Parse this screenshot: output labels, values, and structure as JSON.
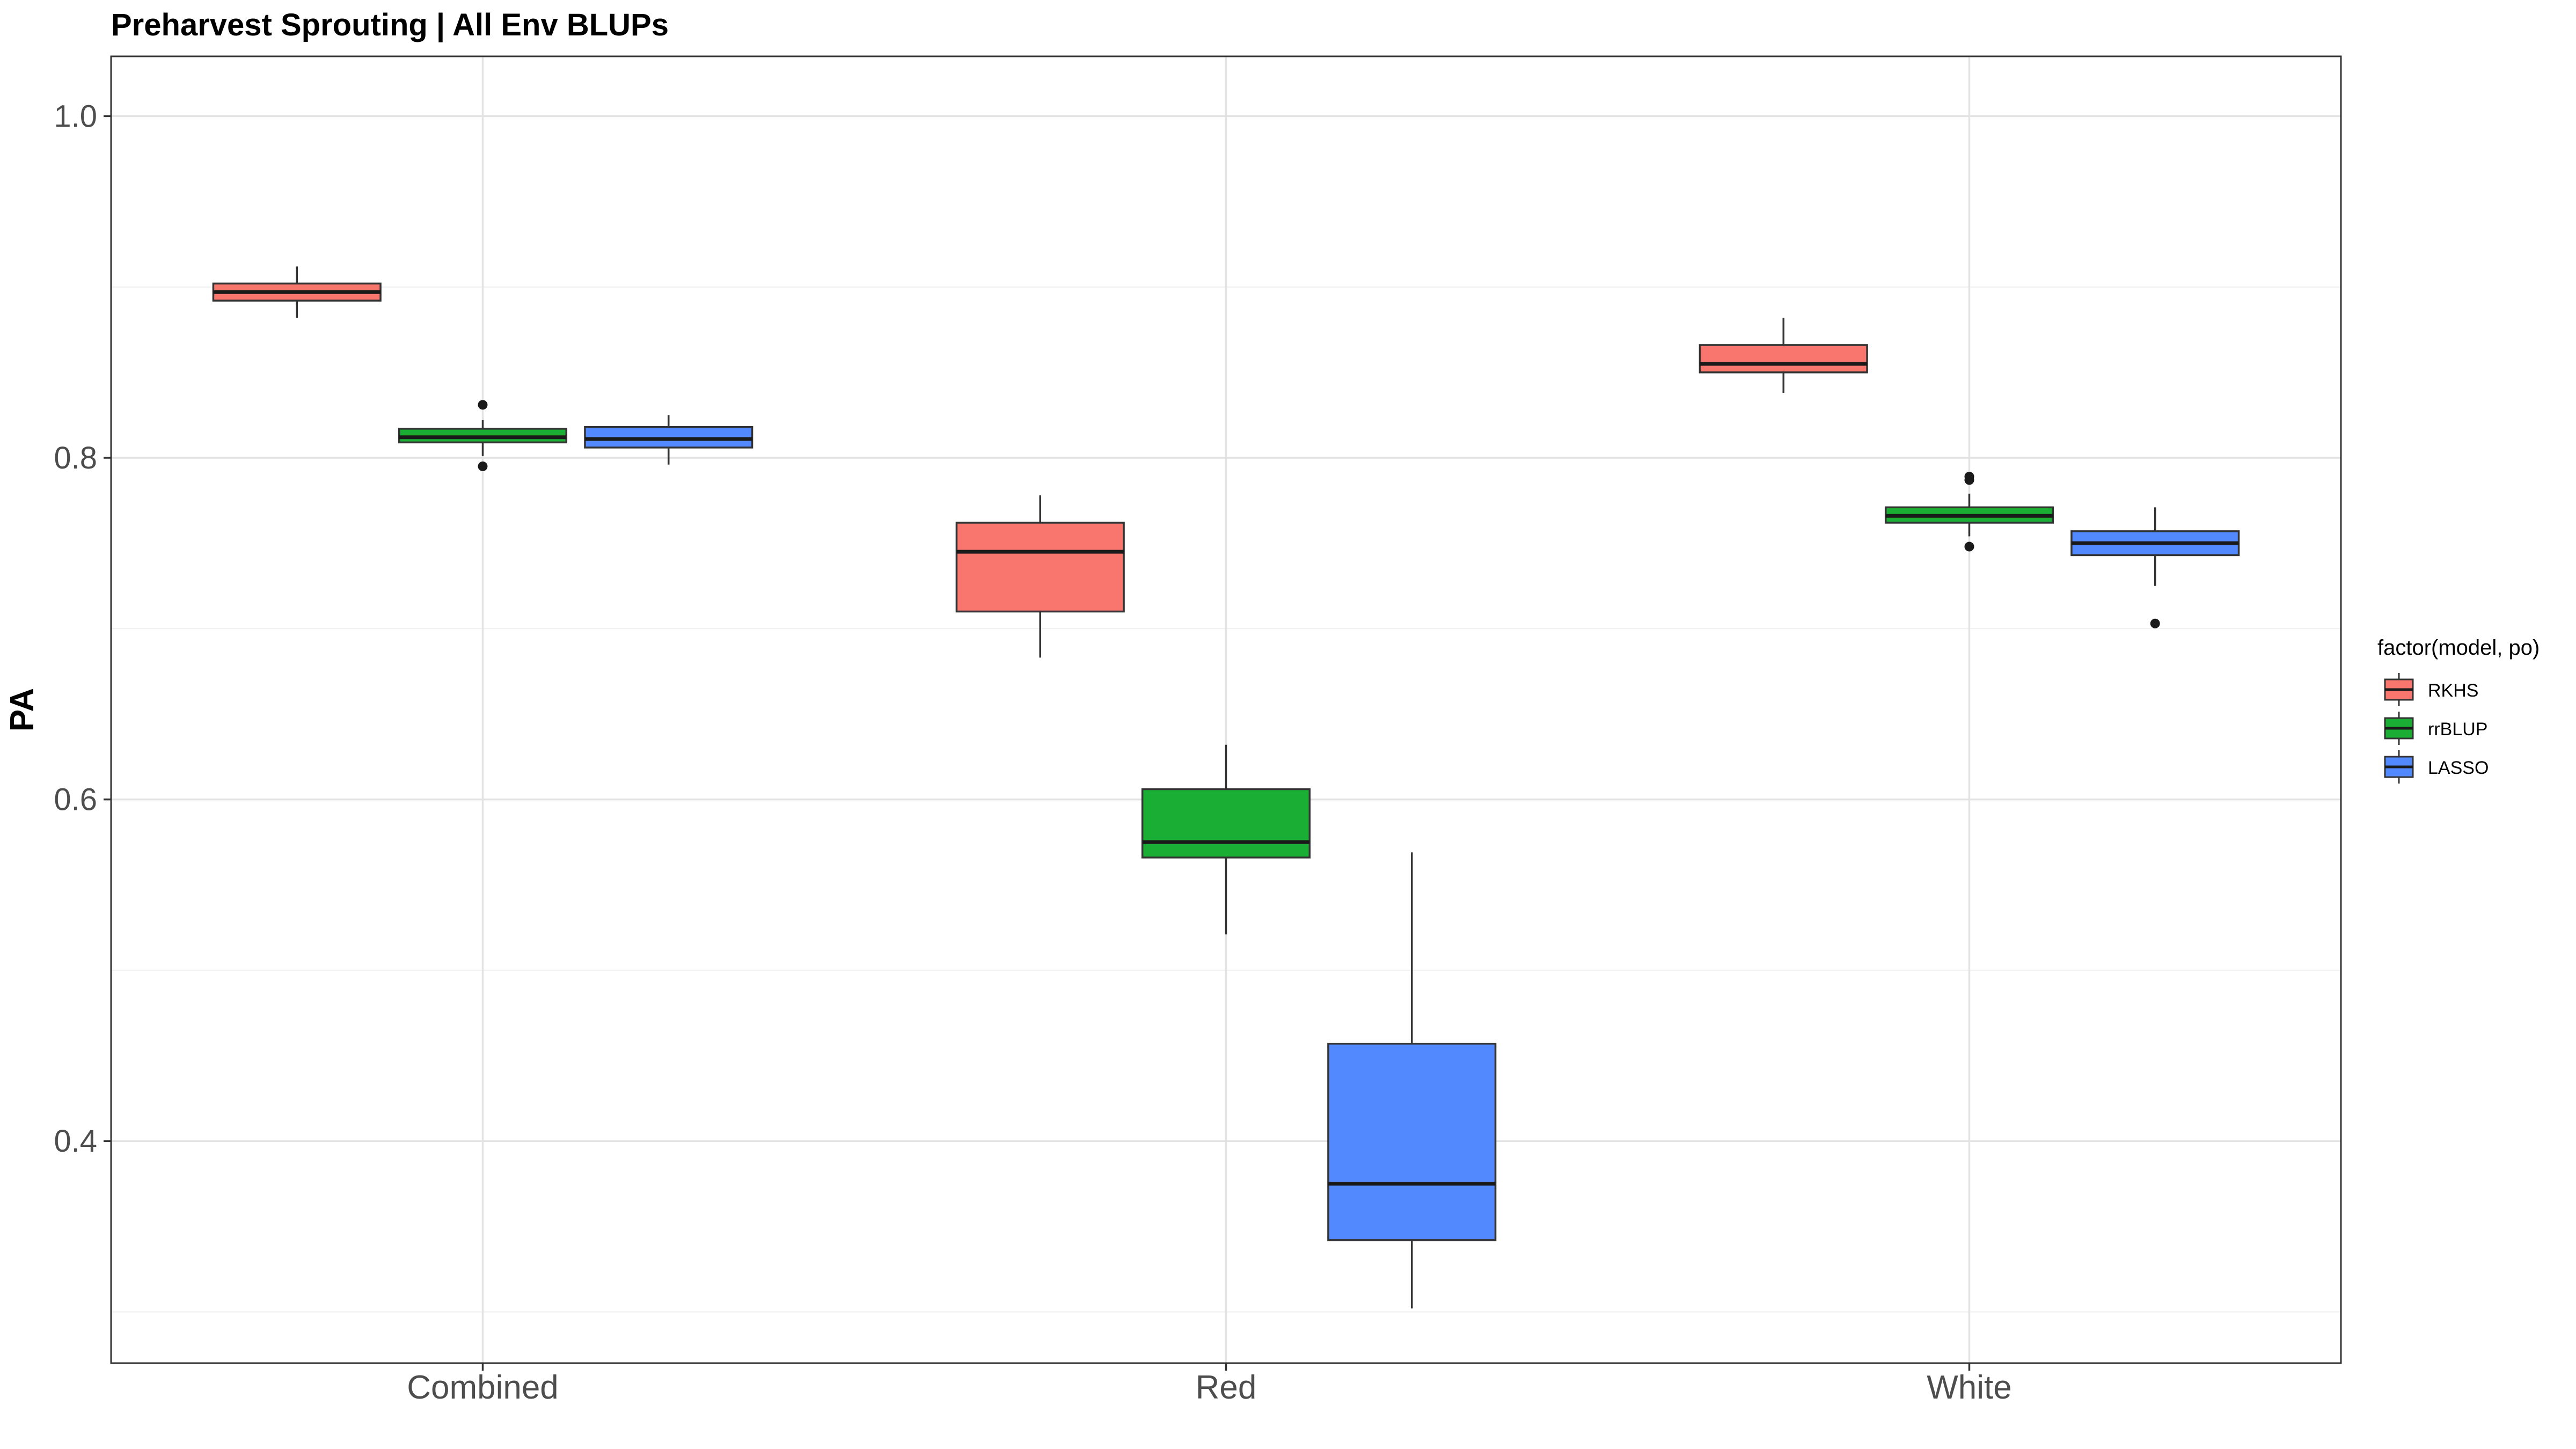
{
  "chart_data": {
    "type": "boxplot",
    "title": "Preharvest Sprouting | All Env BLUPs",
    "xlabel": "",
    "ylabel": "PA",
    "ylim": [
      0.27,
      1.035
    ],
    "y_ticks": [
      0.4,
      0.6,
      0.8,
      1.0
    ],
    "y_tick_labels": [
      "0.4",
      "0.6",
      "0.8",
      "1.0"
    ],
    "grid": true,
    "legend": {
      "title": "factor(model, po)",
      "position": "right",
      "entries": [
        {
          "name": "RKHS",
          "color": "#F8766D"
        },
        {
          "name": "rrBLUP",
          "color": "#1AAE35"
        },
        {
          "name": "LASSO",
          "color": "#5289FF"
        }
      ]
    },
    "categories": [
      "Combined",
      "Red",
      "White"
    ],
    "series": [
      {
        "name": "RKHS",
        "color": "#F8766D",
        "boxes": [
          {
            "category": "Combined",
            "whisker_low": 0.882,
            "q1": 0.892,
            "median": 0.897,
            "q3": 0.902,
            "whisker_high": 0.912,
            "outliers": []
          },
          {
            "category": "Red",
            "whisker_low": 0.683,
            "q1": 0.71,
            "median": 0.745,
            "q3": 0.762,
            "whisker_high": 0.778,
            "outliers": []
          },
          {
            "category": "White",
            "whisker_low": 0.838,
            "q1": 0.85,
            "median": 0.855,
            "q3": 0.866,
            "whisker_high": 0.882,
            "outliers": []
          }
        ]
      },
      {
        "name": "rrBLUP",
        "color": "#1AAE35",
        "boxes": [
          {
            "category": "Combined",
            "whisker_low": 0.801,
            "q1": 0.809,
            "median": 0.812,
            "q3": 0.817,
            "whisker_high": 0.822,
            "outliers": [
              0.831,
              0.795
            ]
          },
          {
            "category": "Red",
            "whisker_low": 0.521,
            "q1": 0.566,
            "median": 0.575,
            "q3": 0.606,
            "whisker_high": 0.632,
            "outliers": []
          },
          {
            "category": "White",
            "whisker_low": 0.754,
            "q1": 0.762,
            "median": 0.766,
            "q3": 0.771,
            "whisker_high": 0.779,
            "outliers": [
              0.789,
              0.787,
              0.748
            ]
          }
        ]
      },
      {
        "name": "LASSO",
        "color": "#5289FF",
        "boxes": [
          {
            "category": "Combined",
            "whisker_low": 0.796,
            "q1": 0.806,
            "median": 0.811,
            "q3": 0.818,
            "whisker_high": 0.825,
            "outliers": []
          },
          {
            "category": "Red",
            "whisker_low": 0.302,
            "q1": 0.342,
            "median": 0.375,
            "q3": 0.457,
            "whisker_high": 0.569,
            "outliers": []
          },
          {
            "category": "White",
            "whisker_low": 0.725,
            "q1": 0.743,
            "median": 0.75,
            "q3": 0.757,
            "whisker_high": 0.771,
            "outliers": [
              0.703
            ]
          }
        ]
      }
    ]
  }
}
